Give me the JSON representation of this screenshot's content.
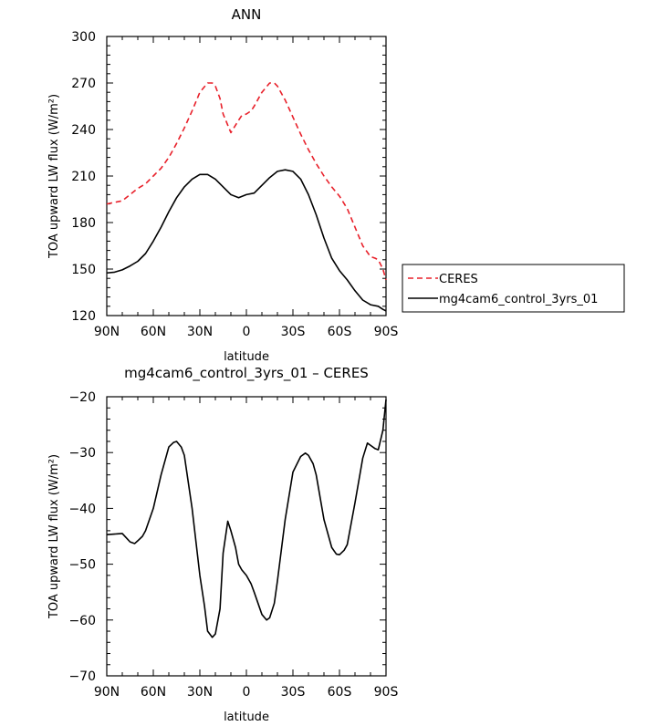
{
  "chart_data": [
    {
      "type": "line",
      "title": "ANN",
      "xlabel": "latitude",
      "ylabel": "TOA upward LW flux (W/m²)",
      "xlim": [
        90,
        -90
      ],
      "ylim": [
        120,
        300
      ],
      "x_tick_labels": [
        "90N",
        "60N",
        "30N",
        "0",
        "30S",
        "60S",
        "90S"
      ],
      "y_tick_labels": [
        "120",
        "150",
        "180",
        "210",
        "240",
        "270",
        "300"
      ],
      "legend": {
        "placement": "right"
      },
      "series": [
        {
          "name": "CERES",
          "color": "#e8202a",
          "dash": "dashed",
          "x": [
            90,
            85,
            80,
            75,
            70,
            65,
            60,
            55,
            50,
            45,
            40,
            35,
            30,
            25,
            22,
            20,
            17,
            15,
            10,
            5,
            3,
            0,
            -3,
            -5,
            -10,
            -15,
            -18,
            -20,
            -25,
            -30,
            -35,
            -40,
            -45,
            -50,
            -55,
            -60,
            -65,
            -70,
            -75,
            -80,
            -83,
            -85,
            -88,
            -90
          ],
          "y": [
            192,
            193,
            194,
            198,
            202,
            205,
            210,
            215,
            222,
            231,
            241,
            252,
            264,
            270,
            270,
            268,
            260,
            250,
            238,
            246,
            249,
            250,
            252,
            255,
            264,
            270,
            270,
            268,
            259,
            248,
            237,
            227,
            218,
            210,
            203,
            197,
            189,
            177,
            165,
            158,
            157,
            156,
            150,
            143
          ]
        },
        {
          "name": "mg4cam6_control_3yrs_01",
          "color": "#000000",
          "dash": "solid",
          "x": [
            90,
            85,
            80,
            75,
            70,
            65,
            60,
            55,
            50,
            45,
            40,
            35,
            30,
            25,
            20,
            15,
            10,
            5,
            0,
            -5,
            -10,
            -15,
            -20,
            -25,
            -30,
            -35,
            -40,
            -45,
            -50,
            -55,
            -60,
            -65,
            -70,
            -75,
            -80,
            -85,
            -88,
            -90
          ],
          "y": [
            147.5,
            148,
            149.5,
            152,
            155,
            160,
            168,
            177,
            187,
            196,
            203,
            208,
            211,
            211,
            208,
            203,
            198,
            196,
            198,
            199,
            204,
            209,
            213,
            214,
            213,
            208,
            198,
            185,
            170,
            157,
            149,
            143,
            136,
            130,
            127,
            126,
            124,
            123
          ]
        }
      ]
    },
    {
      "type": "line",
      "title": "mg4cam6_control_3yrs_01 – CERES",
      "xlabel": "latitude",
      "ylabel": "TOA upward LW flux (W/m²)",
      "xlim": [
        90,
        -90
      ],
      "ylim": [
        -70,
        -20
      ],
      "x_tick_labels": [
        "90N",
        "60N",
        "30N",
        "0",
        "30S",
        "60S",
        "90S"
      ],
      "y_tick_labels": [
        "−70",
        "−60",
        "−50",
        "−40",
        "−30",
        "−20"
      ],
      "series": [
        {
          "color": "#000000",
          "dash": "solid",
          "x": [
            90,
            85,
            80,
            77,
            75,
            72,
            70,
            67,
            65,
            60,
            55,
            50,
            47,
            45,
            42,
            40,
            35,
            30,
            27,
            25,
            22,
            20,
            17,
            15,
            12,
            10,
            7,
            5,
            3,
            0,
            -3,
            -5,
            -10,
            -13,
            -15,
            -18,
            -20,
            -25,
            -30,
            -35,
            -38,
            -40,
            -43,
            -45,
            -50,
            -55,
            -58,
            -60,
            -63,
            -65,
            -70,
            -75,
            -78,
            -80,
            -83,
            -85,
            -88,
            -90
          ],
          "y": [
            -44.7,
            -44.6,
            -44.5,
            -45.4,
            -46,
            -46.3,
            -45.8,
            -45,
            -44,
            -40,
            -34,
            -29,
            -28.2,
            -28,
            -29,
            -30.5,
            -40,
            -52,
            -57.5,
            -62,
            -63.1,
            -62.5,
            -58,
            -48,
            -42.3,
            -44,
            -47,
            -50,
            -51,
            -52,
            -53.5,
            -55,
            -59,
            -60,
            -59.6,
            -57,
            -53,
            -42,
            -33.5,
            -30.7,
            -30.1,
            -30.5,
            -32,
            -34,
            -42,
            -47,
            -48.2,
            -48.3,
            -47.5,
            -46.5,
            -39,
            -31,
            -28.3,
            -28.7,
            -29.3,
            -29.5,
            -26,
            -20.5
          ]
        }
      ]
    }
  ]
}
